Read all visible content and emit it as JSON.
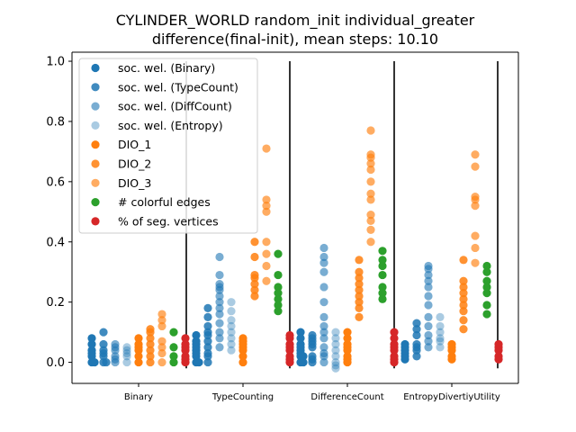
{
  "chart_data": {
    "type": "scatter",
    "title": "CYLINDER_WORLD random_init individual_greater",
    "subtitle": "difference(final-init), mean steps: 10.10",
    "xlabel": "",
    "ylabel": "",
    "ylim": [
      -0.07,
      1.03
    ],
    "yticks": [
      "0.0",
      "0.2",
      "0.4",
      "0.6",
      "0.8",
      "1.0"
    ],
    "categories": [
      "Binary",
      "TypeCounting",
      "DifferenceCount",
      "EntropyDivertiyUtility"
    ],
    "legend_position": "upper-left",
    "grid": false,
    "series": [
      {
        "name": "soc. wel. (Binary)",
        "color": "#1f77b4",
        "alpha": 1.0,
        "values": [
          [
            0.0,
            0.02,
            0.04,
            0.06,
            0.08,
            0.0,
            0.03
          ],
          [
            0.0,
            0.02,
            0.04,
            0.06,
            0.09,
            0.0,
            0.03,
            0.05,
            0.07
          ],
          [
            0.0,
            0.02,
            0.04,
            0.06,
            0.1,
            0.0,
            0.03,
            0.05,
            0.08,
            0.02
          ],
          [
            0.01,
            0.03,
            0.05,
            0.06,
            0.02,
            0.04
          ]
        ]
      },
      {
        "name": "soc. wel. (TypeCount)",
        "color": "#1f77b4",
        "alpha": 0.85,
        "values": [
          [
            0.0,
            0.02,
            0.04,
            0.06,
            0.1,
            0.0,
            0.03
          ],
          [
            0.0,
            0.02,
            0.05,
            0.07,
            0.09,
            0.12,
            0.15,
            0.18,
            0.03,
            0.1
          ],
          [
            0.0,
            0.02,
            0.05,
            0.07,
            0.09,
            0.01,
            0.06,
            0.08
          ],
          [
            0.02,
            0.04,
            0.06,
            0.09,
            0.13,
            0.11,
            0.05
          ]
        ]
      },
      {
        "name": "soc. wel. (DiffCount)",
        "color": "#1f77b4",
        "alpha": 0.6,
        "values": [
          [
            0.0,
            0.02,
            0.04,
            0.05,
            0.06,
            0.01
          ],
          [
            0.05,
            0.08,
            0.1,
            0.13,
            0.16,
            0.18,
            0.2,
            0.22,
            0.24,
            0.25,
            0.26,
            0.29,
            0.35
          ],
          [
            0.0,
            0.02,
            0.03,
            0.05,
            0.08,
            0.1,
            0.12,
            0.15,
            0.2,
            0.25,
            0.3,
            0.33,
            0.35,
            0.38
          ],
          [
            0.05,
            0.07,
            0.09,
            0.12,
            0.15,
            0.19,
            0.22,
            0.25,
            0.27,
            0.29,
            0.31,
            0.32
          ]
        ]
      },
      {
        "name": "soc. wel. (Entropy)",
        "color": "#1f77b4",
        "alpha": 0.38,
        "values": [
          [
            0.0,
            0.02,
            0.03,
            0.04,
            0.05
          ],
          [
            0.04,
            0.06,
            0.08,
            0.1,
            0.12,
            0.14,
            0.17,
            0.2
          ],
          [
            -0.02,
            -0.01,
            0.0,
            0.02,
            0.04,
            0.06,
            0.08,
            0.1
          ],
          [
            0.05,
            0.07,
            0.08,
            0.1,
            0.12,
            0.15
          ]
        ]
      },
      {
        "name": "DIO_1",
        "color": "#ff7f0e",
        "alpha": 1.0,
        "values": [
          [
            0.0,
            0.02,
            0.04,
            0.05,
            0.06,
            0.08
          ],
          [
            0.0,
            0.02,
            0.04,
            0.05,
            0.06,
            0.07,
            0.08
          ],
          [
            0.0,
            0.01,
            0.02,
            0.04,
            0.05,
            0.06,
            0.08,
            0.1
          ],
          [
            0.01,
            0.02,
            0.04,
            0.05,
            0.06
          ]
        ]
      },
      {
        "name": "DIO_2",
        "color": "#ff7f0e",
        "alpha": 0.85,
        "values": [
          [
            0.0,
            0.02,
            0.04,
            0.06,
            0.08,
            0.1,
            0.11
          ],
          [
            0.22,
            0.24,
            0.26,
            0.28,
            0.29,
            0.35,
            0.4
          ],
          [
            0.15,
            0.18,
            0.2,
            0.22,
            0.24,
            0.26,
            0.28,
            0.3,
            0.34
          ],
          [
            0.11,
            0.14,
            0.17,
            0.19,
            0.21,
            0.23,
            0.25,
            0.27,
            0.34
          ]
        ]
      },
      {
        "name": "DIO_3",
        "color": "#ff7f0e",
        "alpha": 0.65,
        "values": [
          [
            0.0,
            0.03,
            0.05,
            0.07,
            0.12,
            0.14,
            0.16
          ],
          [
            0.27,
            0.32,
            0.36,
            0.4,
            0.5,
            0.52,
            0.54,
            0.71
          ],
          [
            0.4,
            0.44,
            0.47,
            0.49,
            0.54,
            0.56,
            0.6,
            0.64,
            0.66,
            0.68,
            0.69,
            0.77
          ],
          [
            0.33,
            0.38,
            0.42,
            0.52,
            0.54,
            0.55,
            0.65,
            0.69
          ]
        ]
      },
      {
        "name": "# colorful edges",
        "color": "#2ca02c",
        "alpha": 1.0,
        "values": [
          [
            0.0,
            0.02,
            0.05,
            0.1
          ],
          [
            0.17,
            0.19,
            0.21,
            0.23,
            0.25,
            0.29,
            0.36
          ],
          [
            0.21,
            0.23,
            0.25,
            0.29,
            0.32,
            0.34,
            0.37
          ],
          [
            0.16,
            0.19,
            0.23,
            0.25,
            0.27,
            0.3,
            0.32
          ]
        ]
      },
      {
        "name": "% of seg. vertices",
        "color": "#d62728",
        "alpha": 1.0,
        "values": [
          [
            0.0,
            0.01,
            0.02,
            0.04,
            0.05,
            0.06,
            0.08
          ],
          [
            0.0,
            0.01,
            0.02,
            0.04,
            0.05,
            0.06,
            0.08,
            0.09
          ],
          [
            0.0,
            0.01,
            0.02,
            0.04,
            0.05,
            0.06,
            0.08,
            0.1
          ],
          [
            0.01,
            0.02,
            0.04,
            0.05,
            0.06
          ]
        ]
      }
    ]
  }
}
